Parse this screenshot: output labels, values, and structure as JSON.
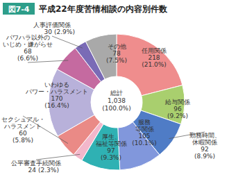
{
  "chart_data": {
    "type": "pie",
    "figure_label": "図7-4",
    "title": "平成22年度苦情相談の内容別件数",
    "categories": [
      "任用関係",
      "給与関係",
      "勤務時間、\n休暇関係",
      "服務\n等関係",
      "厚生、\n福祉等関係",
      "公平審査手続関係",
      "セクシュアル・\nハラスメント",
      "いわゆる\nパワー・ハラスメント",
      "パワハラ以外の\nいじめ・嫌がらせ",
      "人事評価関係",
      "その他"
    ],
    "values": [
      218,
      96,
      92,
      105,
      97,
      24,
      60,
      170,
      68,
      30,
      78
    ],
    "percents": [
      21.0,
      9.2,
      8.9,
      10.1,
      9.3,
      2.3,
      5.8,
      16.4,
      6.6,
      2.9,
      7.5
    ],
    "percent_labels": [
      "(21.0%)",
      "(9.2%)",
      "(8.9%)",
      "(10.1%)",
      "(9.3%)",
      "(2.3%)",
      "(5.8%)",
      "(16.4%)",
      "(6.6%)",
      "(2.9%)",
      "(7.5%)"
    ],
    "colors": [
      "#ef8d8d",
      "#a9cf6e",
      "#4f7cc6",
      "#8197dc",
      "#2fb1b3",
      "#f3b7cb",
      "#ea8a86",
      "#b8b1da",
      "#c56aa0",
      "#7a6bb6",
      "#a9a9a9"
    ],
    "data_labels": true,
    "total": {
      "label": "総計",
      "value": 1038,
      "value_label": "1,038",
      "percent": 100.0,
      "percent_label": "(100.0%)"
    }
  }
}
